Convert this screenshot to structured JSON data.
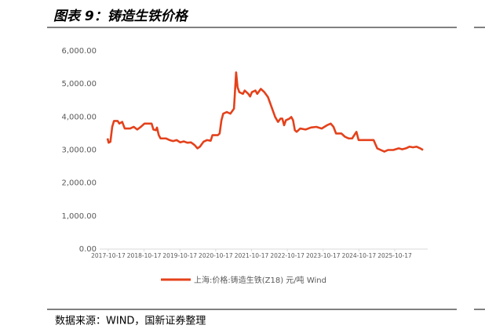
{
  "chart_data": {
    "type": "line",
    "title": "图表 9：铸造生铁价格",
    "source": "数据来源：WIND，国新证券整理",
    "x": [
      2017.77,
      2017.8,
      2017.85,
      2017.9,
      2017.95,
      2018.05,
      2018.1,
      2018.18,
      2018.25,
      2018.4,
      2018.5,
      2018.6,
      2018.7,
      2018.8,
      2019.0,
      2019.05,
      2019.12,
      2019.15,
      2019.2,
      2019.25,
      2019.4,
      2019.5,
      2019.6,
      2019.7,
      2019.8,
      2019.9,
      2020.0,
      2020.1,
      2020.2,
      2020.28,
      2020.35,
      2020.45,
      2020.55,
      2020.65,
      2020.7,
      2020.85,
      2020.9,
      2020.95,
      2021.0,
      2021.1,
      2021.2,
      2021.3,
      2021.36,
      2021.4,
      2021.45,
      2021.55,
      2021.6,
      2021.7,
      2021.75,
      2021.8,
      2021.9,
      2021.95,
      2022.05,
      2022.15,
      2022.25,
      2022.35,
      2022.45,
      2022.53,
      2022.6,
      2022.65,
      2022.7,
      2022.75,
      2022.85,
      2022.9,
      2022.95,
      2023.0,
      2023.05,
      2023.15,
      2023.3,
      2023.45,
      2023.6,
      2023.75,
      2023.9,
      2024.0,
      2024.08,
      2024.15,
      2024.3,
      2024.4,
      2024.5,
      2024.6,
      2024.72,
      2024.78,
      2025.0,
      2025.2,
      2025.3,
      2025.4,
      2025.5,
      2025.6,
      2025.75,
      2025.9,
      2026.0,
      2026.1,
      2026.2,
      2026.3,
      2026.4,
      2026.5,
      2026.58
    ],
    "series": [
      {
        "name": "上海:价格:铸造生铁(Z18) 元/吨 Wind",
        "color": "#e4411b",
        "values": [
          3350,
          3220,
          3250,
          3700,
          3880,
          3880,
          3800,
          3850,
          3650,
          3650,
          3700,
          3620,
          3700,
          3800,
          3800,
          3620,
          3600,
          3680,
          3450,
          3350,
          3350,
          3300,
          3270,
          3300,
          3230,
          3260,
          3220,
          3230,
          3150,
          3050,
          3100,
          3250,
          3300,
          3280,
          3450,
          3450,
          3500,
          3900,
          4100,
          4150,
          4100,
          4250,
          5350,
          4900,
          4750,
          4700,
          4800,
          4700,
          4620,
          4750,
          4800,
          4700,
          4850,
          4750,
          4600,
          4300,
          4000,
          3850,
          3950,
          3950,
          3750,
          3900,
          3950,
          4000,
          3900,
          3600,
          3550,
          3650,
          3620,
          3680,
          3700,
          3650,
          3750,
          3800,
          3700,
          3500,
          3500,
          3400,
          3350,
          3350,
          3550,
          3300,
          3300,
          3300,
          3050,
          3000,
          2950,
          3000,
          3000,
          3050,
          3020,
          3050,
          3100,
          3080,
          3100,
          3050,
          3000
        ]
      }
    ],
    "xlim": [
      2017.55,
      2026.71
    ],
    "xticks": [
      {
        "value": 2017.79,
        "label": "2017-10-17"
      },
      {
        "value": 2018.79,
        "label": "2018-10-17"
      },
      {
        "value": 2019.79,
        "label": "2019-10-17"
      },
      {
        "value": 2020.79,
        "label": "2020-10-17"
      },
      {
        "value": 2021.79,
        "label": "2021-10-17"
      },
      {
        "value": 2022.79,
        "label": "2022-10-17"
      },
      {
        "value": 2023.79,
        "label": "2023-10-17"
      },
      {
        "value": 2024.79,
        "label": "2024-10-17"
      },
      {
        "value": 2025.79,
        "label": "2025-10-17"
      }
    ],
    "ylim": [
      0,
      6000
    ],
    "yticks": [
      {
        "value": 0,
        "label": "0.00"
      },
      {
        "value": 1000,
        "label": "1,000.00"
      },
      {
        "value": 2000,
        "label": "2,000.00"
      },
      {
        "value": 3000,
        "label": "3,000.00"
      },
      {
        "value": 4000,
        "label": "4,000.00"
      },
      {
        "value": 5000,
        "label": "5,000.00"
      },
      {
        "value": 6000,
        "label": "6,000.00"
      }
    ]
  }
}
